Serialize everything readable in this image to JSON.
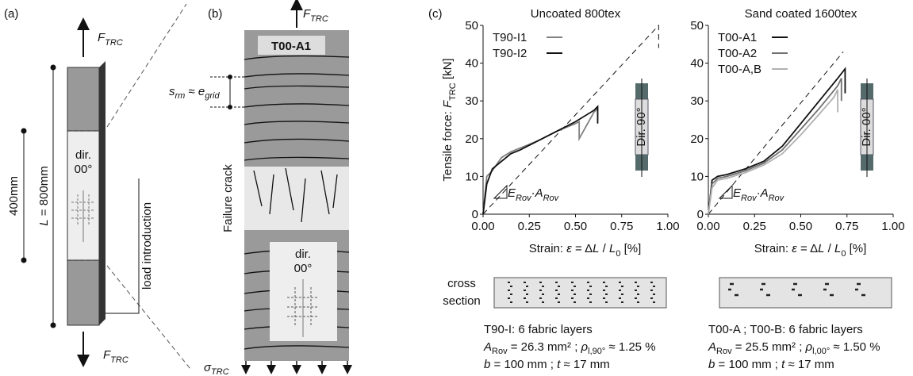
{
  "panels": {
    "a": "(a)",
    "b": "(b)",
    "c": "(c)"
  },
  "panel_a": {
    "force_top": [
      "F",
      "TRC"
    ],
    "force_bottom": [
      "F",
      "TRC"
    ],
    "length_half": "400mm",
    "length": [
      "L",
      " = 800mm"
    ],
    "dir": "dir.",
    "angle": "00°",
    "load": "load introduction"
  },
  "panel_b": {
    "force_top": [
      "F",
      "TRC"
    ],
    "specimen": "T00-A1",
    "spacing": [
      "s",
      "rm",
      " ≈ ",
      "e",
      "grid"
    ],
    "crack": "Failure crack",
    "dir": "dir.",
    "angle": "00°",
    "stress": [
      "σ",
      "TRC"
    ]
  },
  "chart_data": [
    {
      "type": "line",
      "title": "Uncoated 800tex",
      "ylabel": [
        "Tensile force: ",
        "F",
        "TRC",
        " [kN]"
      ],
      "xlabel": [
        "Strain: ",
        "ε",
        " = Δ",
        "L",
        " / ",
        "L",
        "0",
        " [%]"
      ],
      "annotation": [
        "E",
        "Rov",
        "·",
        "A",
        "Rov"
      ],
      "inset": "Dir. 90°",
      "xlim": [
        0,
        1
      ],
      "ylim": [
        0,
        50
      ],
      "xticks": [
        {
          "value": 0,
          "label": "0.00"
        },
        {
          "value": 0.25,
          "label": "0.25"
        },
        {
          "value": 0.5,
          "label": "0.50"
        },
        {
          "value": 0.75,
          "label": "0.75"
        },
        {
          "value": 1,
          "label": "1.00"
        }
      ],
      "yticks": [
        0,
        10,
        20,
        30,
        40,
        50
      ],
      "legend": "upper left",
      "reference": {
        "x": [
          0,
          0.95,
          0.95
        ],
        "y": [
          0,
          50,
          44
        ]
      },
      "series": [
        {
          "name": "T90-I1",
          "color": "#808080",
          "x": [
            0,
            0.02,
            0.05,
            0.1,
            0.15,
            0.2,
            0.3,
            0.4,
            0.5,
            0.52,
            0.52,
            0.6,
            0.62,
            0.62
          ],
          "values": [
            0,
            10,
            11.5,
            15,
            16.5,
            17.5,
            19.5,
            22,
            24,
            24.5,
            20,
            27,
            28,
            25
          ]
        },
        {
          "name": "T90-I2",
          "color": "#111111",
          "x": [
            0,
            0.02,
            0.05,
            0.1,
            0.15,
            0.2,
            0.3,
            0.4,
            0.5,
            0.6,
            0.62,
            0.62
          ],
          "values": [
            0,
            8,
            12,
            14,
            16,
            17,
            19.5,
            22,
            24.5,
            27.5,
            28.5,
            24
          ]
        }
      ]
    },
    {
      "type": "line",
      "title": "Sand coated 1600tex",
      "xlabel": [
        "Strain: ",
        "ε",
        " = Δ",
        "L",
        " / ",
        "L",
        "0",
        " [%]"
      ],
      "annotation": [
        "E",
        "Rov",
        "·",
        "A",
        "Rov"
      ],
      "inset": "Dir. 00°",
      "xlim": [
        0,
        1
      ],
      "ylim": [
        0,
        50
      ],
      "xticks": [
        {
          "value": 0,
          "label": "0.00"
        },
        {
          "value": 0.25,
          "label": "0.25"
        },
        {
          "value": 0.5,
          "label": "0.50"
        },
        {
          "value": 0.75,
          "label": "0.75"
        },
        {
          "value": 1,
          "label": "1.00"
        }
      ],
      "yticks": [
        0,
        10,
        20,
        30,
        40,
        50
      ],
      "legend": "upper left",
      "reference": {
        "x": [
          0,
          0.73
        ],
        "y": [
          0,
          43
        ]
      },
      "series": [
        {
          "name": "T00-A1",
          "color": "#111111",
          "x": [
            0,
            0.02,
            0.05,
            0.1,
            0.2,
            0.3,
            0.4,
            0.5,
            0.6,
            0.7,
            0.74,
            0.74
          ],
          "values": [
            0,
            9,
            10,
            10.5,
            12,
            14,
            18,
            24,
            30,
            36,
            38.5,
            32
          ]
        },
        {
          "name": "T00-A2",
          "color": "#707070",
          "x": [
            0,
            0.02,
            0.05,
            0.1,
            0.2,
            0.3,
            0.4,
            0.5,
            0.6,
            0.7,
            0.72,
            0.72
          ],
          "values": [
            0,
            8,
            9.5,
            10,
            11.5,
            13.5,
            17,
            22.5,
            28,
            34,
            36,
            30
          ]
        },
        {
          "name": "T00-A,B",
          "color": "#b0b0b0",
          "x": [
            0,
            0.02,
            0.05,
            0.1,
            0.2,
            0.3,
            0.4,
            0.5,
            0.6,
            0.68,
            0.7,
            0.7
          ],
          "values": [
            0,
            7,
            9,
            9.5,
            11,
            13,
            16,
            21,
            26.5,
            31,
            33,
            27
          ]
        }
      ]
    }
  ],
  "cross_section_label": [
    "cross",
    "section"
  ],
  "captions": [
    {
      "line1": "T90-I: 6 fabric layers",
      "line2": [
        "A",
        "Rov",
        " = 26.3 mm² ; ",
        "ρ",
        "l,90°",
        " ≈ 1.25 %"
      ],
      "line3": [
        "b",
        " = 100 mm ; ",
        "t",
        " ≈ 17 mm"
      ]
    },
    {
      "line1": "T00-A ; T00-B: 6 fabric layers",
      "line2": [
        "A",
        "Rov",
        " = 25.5 mm² ; ",
        "ρ",
        "l,00°",
        " ≈ 1.50 %"
      ],
      "line3": [
        "b",
        " = 100 mm ; ",
        "t",
        " ≈ 17 mm"
      ]
    }
  ]
}
